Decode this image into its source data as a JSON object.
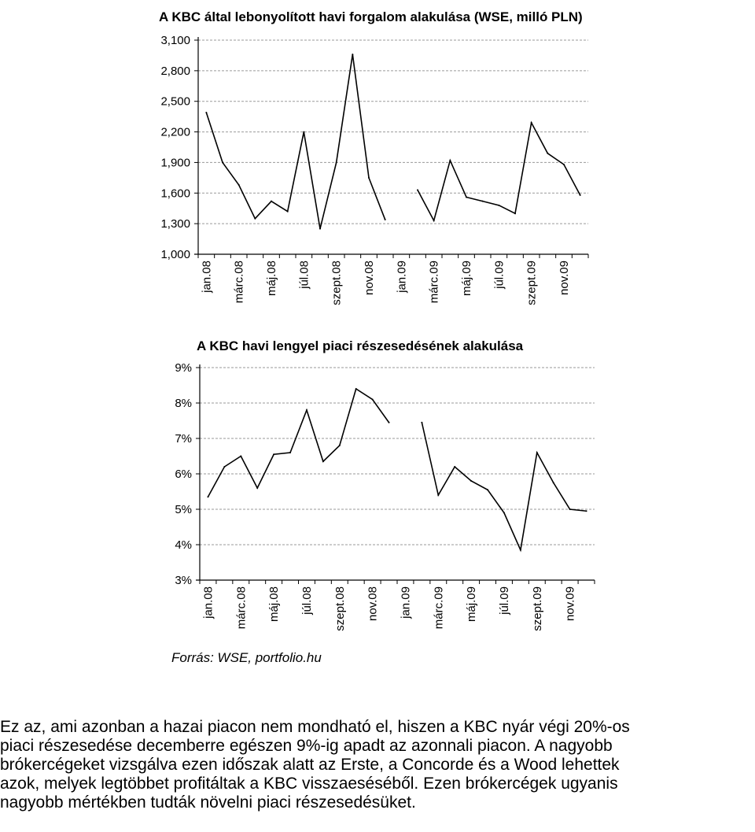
{
  "charts": [
    {
      "title": "A KBC által lebonyolított havi forgalom alakulása (WSE, milló PLN)",
      "type": "line",
      "ylim": [
        1000,
        3100
      ],
      "yticks": [
        "1,000",
        "1,300",
        "1,600",
        "1,900",
        "2,200",
        "2,500",
        "2,800",
        "3,100"
      ],
      "categories": [
        "jan.08",
        "febr.08",
        "márc.08",
        "ápr.08",
        "máj.08",
        "jún.08",
        "júl.08",
        "aug.08",
        "szept.08",
        "okt.08",
        "nov.08",
        "dec.08",
        "jan.09",
        "febr.09",
        "márc.09",
        "ápr.09",
        "máj.09",
        "jún.09",
        "júl.09",
        "aug.09",
        "szept.09",
        "okt.09",
        "nov.09",
        "dec.09"
      ],
      "tick_labels": [
        "jan.08",
        "márc.08",
        "máj.08",
        "júl.08",
        "szept.08",
        "nov.08",
        "jan.09",
        "márc.09",
        "máj.09",
        "júl.09",
        "szept.09",
        "nov.09"
      ],
      "values": [
        2390,
        1900,
        1680,
        1350,
        1520,
        1420,
        2200,
        1250,
        1900,
        2960,
        1750,
        1340,
        null,
        1630,
        1330,
        1920,
        1560,
        1520,
        1480,
        1400,
        2290,
        1990,
        1880,
        1580
      ],
      "grid": true
    },
    {
      "title": "A KBC havi lengyel piaci részesedésének alakulása",
      "type": "line",
      "ylim": [
        3,
        9
      ],
      "yticks": [
        "3%",
        "4%",
        "5%",
        "6%",
        "7%",
        "8%",
        "9%"
      ],
      "categories": [
        "jan.08",
        "febr.08",
        "márc.08",
        "ápr.08",
        "máj.08",
        "jún.08",
        "júl.08",
        "aug.08",
        "szept.08",
        "okt.08",
        "nov.08",
        "dec.08",
        "jan.09",
        "febr.09",
        "márc.09",
        "ápr.09",
        "máj.09",
        "jún.09",
        "júl.09",
        "aug.09",
        "szept.09",
        "okt.09",
        "nov.09",
        "dec.09"
      ],
      "tick_labels": [
        "jan.08",
        "márc.08",
        "máj.08",
        "júl.08",
        "szept.08",
        "nov.08",
        "jan.09",
        "márc.09",
        "máj.09",
        "júl.09",
        "szept.09",
        "nov.09"
      ],
      "values": [
        5.35,
        6.2,
        6.5,
        5.6,
        6.55,
        6.6,
        7.8,
        6.35,
        6.8,
        8.4,
        8.1,
        7.45,
        null,
        7.45,
        5.4,
        6.2,
        5.8,
        5.55,
        4.9,
        3.85,
        6.6,
        5.75,
        5.0,
        4.95
      ],
      "grid": true
    }
  ],
  "source": "Forrás: WSE, portfolio.hu",
  "paragraph_lines": [
    "Ez az, ami azonban a hazai piacon nem mondható el, hiszen a KBC nyár végi 20%-os",
    "piaci részesedése decemberre egészen 9%-ig apadt az azonnali piacon. A nagyobb",
    "brókercégeket vizsgálva ezen időszak alatt az Erste, a Concorde és a Wood lehettek",
    "azok, melyek legtöbbet profitáltak a KBC visszaeséséből. Ezen brókercégek ugyanis",
    "nagyobb mértékben tudták növelni piaci részesedésüket."
  ]
}
